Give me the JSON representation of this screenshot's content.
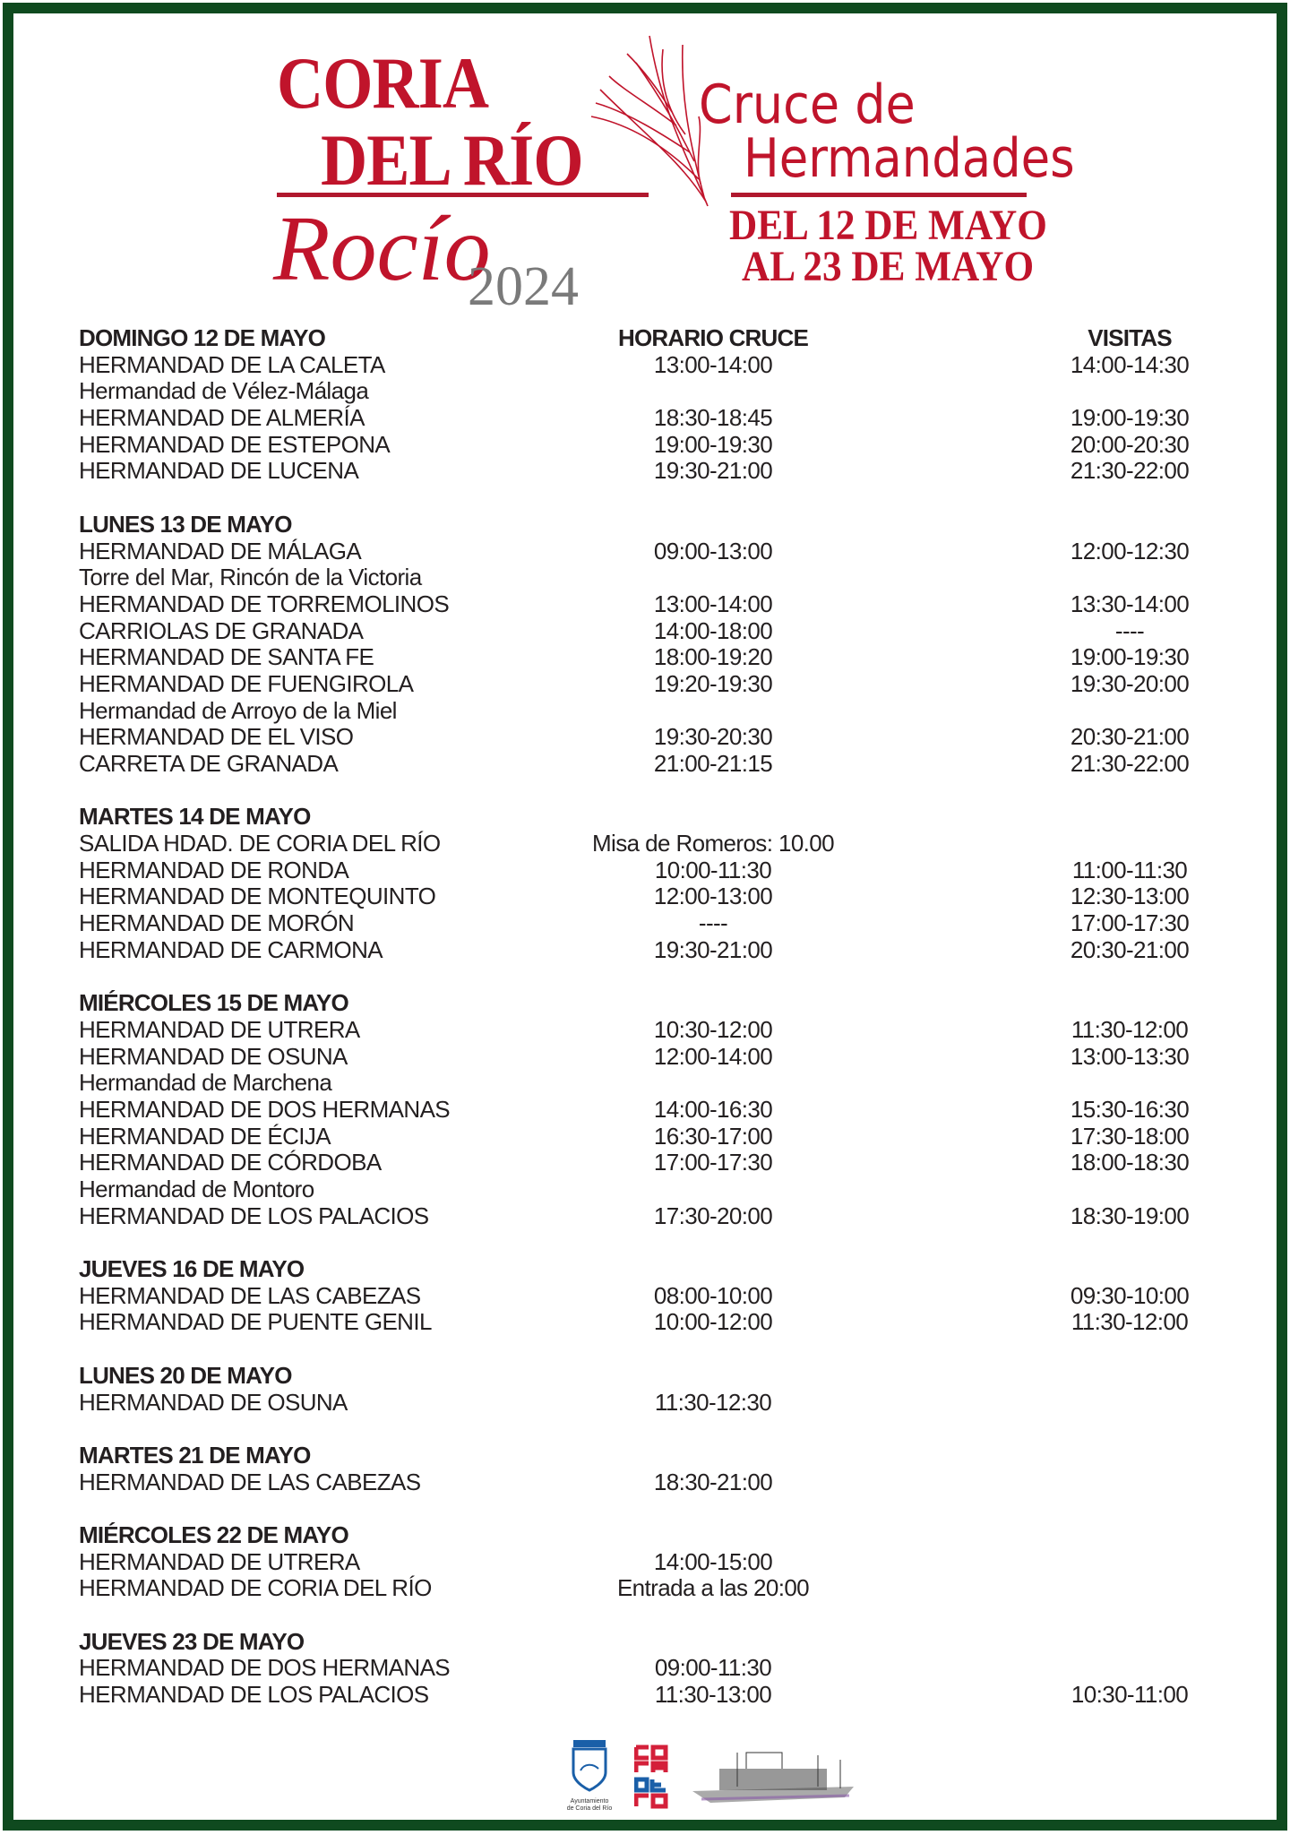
{
  "header": {
    "title_line1": "CORIA",
    "title_line2": "DEL RÍO",
    "subtitle_script": "Rocío",
    "year": "2024",
    "event_line1": "Cruce de",
    "event_line2": "Hermandades",
    "dates_line1": "DEL 12 DE MAYO",
    "dates_line2": "AL 23 DE MAYO"
  },
  "colors": {
    "brand_red": "#c0142b",
    "frame_green": "#0f4a1f",
    "text": "#231f20"
  },
  "columns": {
    "crossing": "HORARIO CRUCE",
    "visits": "VISITAS"
  },
  "days": [
    {
      "date": "DOMINGO 12 DE MAYO",
      "rows": [
        {
          "name": "HERMANDAD DE LA CALETA",
          "cruce": "13:00-14:00",
          "visitas": "14:00-14:30"
        },
        {
          "name": "Hermandad de Vélez-Málaga",
          "cruce": "",
          "visitas": ""
        },
        {
          "name": "HERMANDAD DE ALMERÍA",
          "cruce": "18:30-18:45",
          "visitas": "19:00-19:30"
        },
        {
          "name": "HERMANDAD DE ESTEPONA",
          "cruce": "19:00-19:30",
          "visitas": "20:00-20:30"
        },
        {
          "name": "HERMANDAD DE LUCENA",
          "cruce": "19:30-21:00",
          "visitas": "21:30-22:00"
        }
      ]
    },
    {
      "date": "LUNES 13 DE MAYO",
      "rows": [
        {
          "name": "HERMANDAD DE MÁLAGA",
          "cruce": "09:00-13:00",
          "visitas": "12:00-12:30"
        },
        {
          "name": "Torre del Mar, Rincón de la Victoria",
          "cruce": "",
          "visitas": ""
        },
        {
          "name": "HERMANDAD DE TORREMOLINOS",
          "cruce": "13:00-14:00",
          "visitas": "13:30-14:00"
        },
        {
          "name": "CARRIOLAS DE GRANADA",
          "cruce": "14:00-18:00",
          "visitas": "----"
        },
        {
          "name": "HERMANDAD DE SANTA FE",
          "cruce": "18:00-19:20",
          "visitas": "19:00-19:30"
        },
        {
          "name": "HERMANDAD DE FUENGIROLA",
          "cruce": "19:20-19:30",
          "visitas": "19:30-20:00"
        },
        {
          "name": "Hermandad de Arroyo de la Miel",
          "cruce": "",
          "visitas": ""
        },
        {
          "name": "HERMANDAD DE EL VISO",
          "cruce": "19:30-20:30",
          "visitas": "20:30-21:00"
        },
        {
          "name": "CARRETA DE GRANADA",
          "cruce": "21:00-21:15",
          "visitas": "21:30-22:00"
        }
      ]
    },
    {
      "date": "MARTES 14 DE MAYO",
      "rows": [
        {
          "name": "SALIDA HDAD. DE CORIA DEL RÍO",
          "cruce": "Misa de Romeros: 10.00",
          "visitas": ""
        },
        {
          "name": "HERMANDAD DE RONDA",
          "cruce": "10:00-11:30",
          "visitas": "11:00-11:30"
        },
        {
          "name": "HERMANDAD DE MONTEQUINTO",
          "cruce": "12:00-13:00",
          "visitas": "12:30-13:00"
        },
        {
          "name": "HERMANDAD DE MORÓN",
          "cruce": "----",
          "visitas": "17:00-17:30"
        },
        {
          "name": "HERMANDAD DE CARMONA",
          "cruce": "19:30-21:00",
          "visitas": "20:30-21:00"
        }
      ]
    },
    {
      "date": "MIÉRCOLES 15 DE MAYO",
      "rows": [
        {
          "name": "HERMANDAD DE UTRERA",
          "cruce": "10:30-12:00",
          "visitas": "11:30-12:00"
        },
        {
          "name": "HERMANDAD DE OSUNA",
          "cruce": "12:00-14:00",
          "visitas": "13:00-13:30"
        },
        {
          "name": "Hermandad de Marchena",
          "cruce": "",
          "visitas": ""
        },
        {
          "name": "HERMANDAD DE DOS HERMANAS",
          "cruce": "14:00-16:30",
          "visitas": "15:30-16:30"
        },
        {
          "name": "HERMANDAD DE ÉCIJA",
          "cruce": "16:30-17:00",
          "visitas": "17:30-18:00"
        },
        {
          "name": "HERMANDAD DE CÓRDOBA",
          "cruce": "17:00-17:30",
          "visitas": "18:00-18:30"
        },
        {
          "name": "Hermandad de Montoro",
          "cruce": "",
          "visitas": ""
        },
        {
          "name": "HERMANDAD DE LOS PALACIOS",
          "cruce": "17:30-20:00",
          "visitas": "18:30-19:00"
        }
      ]
    },
    {
      "date": "JUEVES 16 DE MAYO",
      "rows": [
        {
          "name": "HERMANDAD DE LAS CABEZAS",
          "cruce": "08:00-10:00",
          "visitas": "09:30-10:00"
        },
        {
          "name": "HERMANDAD DE PUENTE GENIL",
          "cruce": "10:00-12:00",
          "visitas": "11:30-12:00"
        }
      ]
    },
    {
      "date": "LUNES 20 DE MAYO",
      "rows": [
        {
          "name": "HERMANDAD DE OSUNA",
          "cruce": "11:30-12:30",
          "visitas": ""
        }
      ]
    },
    {
      "date": "MARTES 21 DE MAYO",
      "rows": [
        {
          "name": "HERMANDAD DE LAS CABEZAS",
          "cruce": "18:30-21:00",
          "visitas": ""
        }
      ]
    },
    {
      "date": "MIÉRCOLES 22 DE MAYO",
      "rows": [
        {
          "name": "HERMANDAD DE UTRERA",
          "cruce": "14:00-15:00",
          "visitas": ""
        },
        {
          "name": "HERMANDAD DE CORIA DEL RÍO",
          "cruce": "Entrada a las 20:00",
          "visitas": ""
        }
      ]
    },
    {
      "date": "JUEVES 23 DE MAYO",
      "rows": [
        {
          "name": "HERMANDAD DE DOS HERMANAS",
          "cruce": "09:00-11:30",
          "visitas": ""
        },
        {
          "name": "HERMANDAD DE LOS PALACIOS",
          "cruce": "11:30-13:00",
          "visitas": "10:30-11:00"
        }
      ]
    }
  ],
  "footer": {
    "council_logo_text": "Ayuntamiento de Coria del Río",
    "city_logo_text": "CORIA DEL RÍO",
    "illustration": "ferry-boat-drawing"
  }
}
